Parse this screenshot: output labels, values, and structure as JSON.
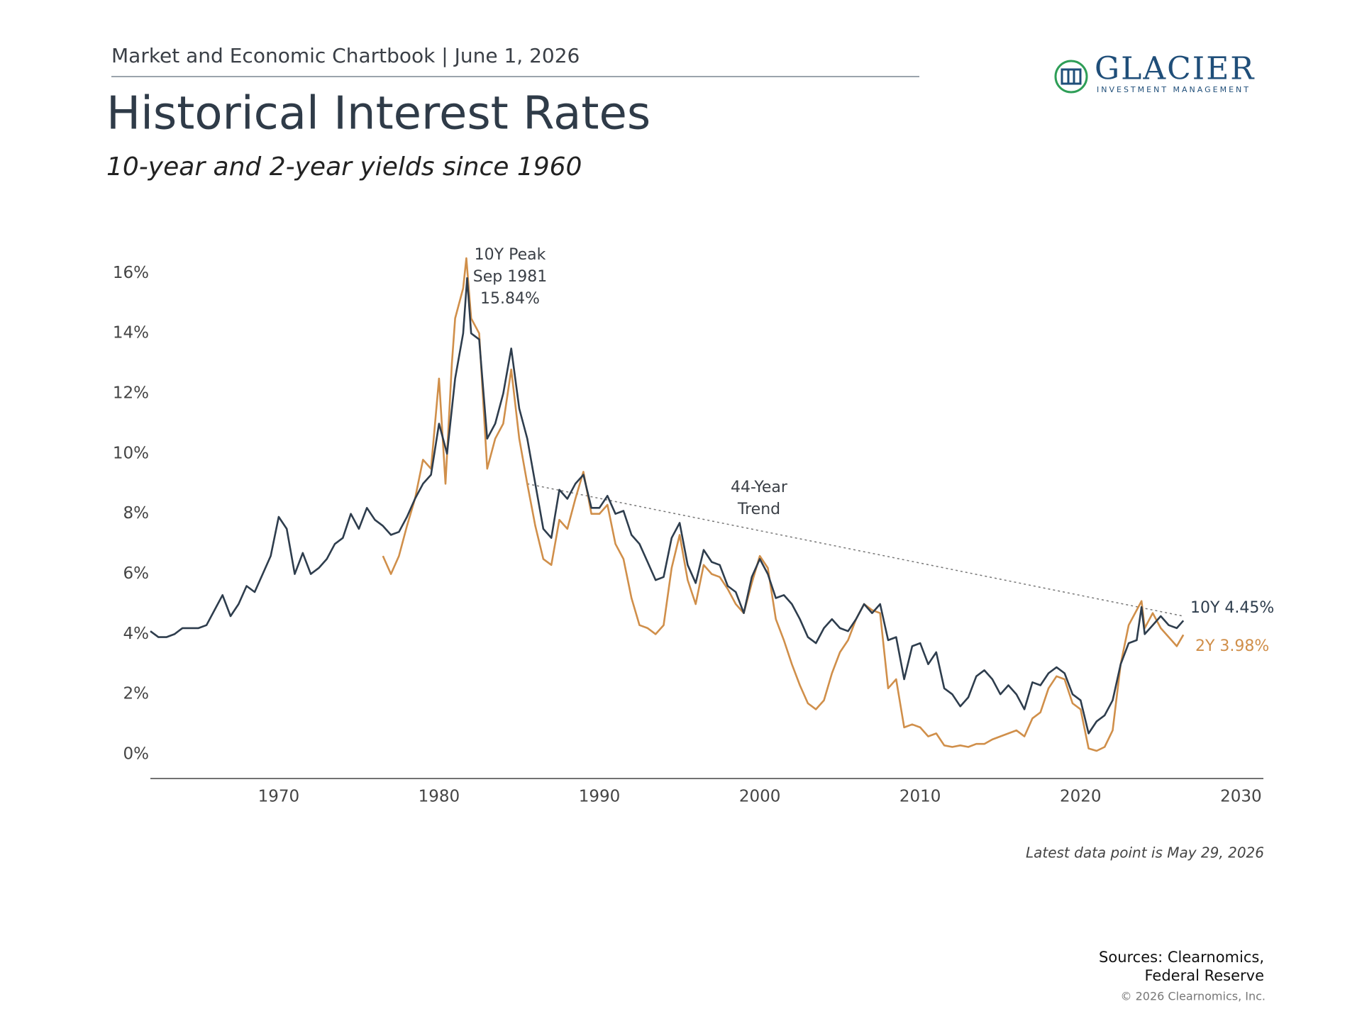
{
  "header": "Market and Economic Chartbook | June 1, 2026",
  "logo": {
    "name": "GLACIER",
    "tagline": "INVESTMENT MANAGEMENT"
  },
  "chart_data": {
    "type": "line",
    "title": "Historical Interest Rates",
    "subtitle": "10-year and 2-year yields since 1960",
    "xlim": [
      1962,
      2031.4
    ],
    "xticks": [
      1970,
      1980,
      1990,
      2000,
      2010,
      2020,
      2030
    ],
    "ylim": [
      -0.8,
      17
    ],
    "yticks": [
      {
        "value": 0,
        "label": "0%"
      },
      {
        "value": 2,
        "label": "2%"
      },
      {
        "value": 4,
        "label": "4%"
      },
      {
        "value": 6,
        "label": "6%"
      },
      {
        "value": 8,
        "label": "8%"
      },
      {
        "value": 10,
        "label": "10%"
      },
      {
        "value": 12,
        "label": "12%"
      },
      {
        "value": 14,
        "label": "14%"
      },
      {
        "value": 16,
        "label": "16%"
      }
    ],
    "series": [
      {
        "name": "10Y",
        "color": "#2e3d4d",
        "x": [
          1962,
          1962.5,
          1963,
          1963.5,
          1964,
          1964.5,
          1965,
          1965.5,
          1966,
          1966.5,
          1967,
          1967.5,
          1968,
          1968.5,
          1969,
          1969.5,
          1970,
          1970.5,
          1971,
          1971.5,
          1972,
          1972.5,
          1973,
          1973.5,
          1974,
          1974.5,
          1975,
          1975.5,
          1976,
          1976.5,
          1977,
          1977.5,
          1978,
          1978.5,
          1979,
          1979.5,
          1980,
          1980.5,
          1981,
          1981.5,
          1981.75,
          1982,
          1982.5,
          1983,
          1983.5,
          1984,
          1984.5,
          1985,
          1985.5,
          1986,
          1986.5,
          1987,
          1987.5,
          1988,
          1988.5,
          1989,
          1989.5,
          1990,
          1990.5,
          1991,
          1991.5,
          1992,
          1992.5,
          1993,
          1993.5,
          1994,
          1994.5,
          1995,
          1995.5,
          1996,
          1996.5,
          1997,
          1997.5,
          1998,
          1998.5,
          1999,
          1999.5,
          2000,
          2000.5,
          2001,
          2001.5,
          2002,
          2002.5,
          2003,
          2003.5,
          2004,
          2004.5,
          2005,
          2005.5,
          2006,
          2006.5,
          2007,
          2007.5,
          2008,
          2008.5,
          2009,
          2009.5,
          2010,
          2010.5,
          2011,
          2011.5,
          2012,
          2012.5,
          2013,
          2013.5,
          2014,
          2014.5,
          2015,
          2015.5,
          2016,
          2016.5,
          2017,
          2017.5,
          2018,
          2018.5,
          2019,
          2019.5,
          2020,
          2020.5,
          2021,
          2021.5,
          2022,
          2022.5,
          2023,
          2023.5,
          2023.8,
          2024,
          2024.5,
          2025,
          2025.5,
          2026,
          2026.41
        ],
        "values": [
          4.1,
          3.9,
          3.9,
          4.0,
          4.2,
          4.2,
          4.2,
          4.3,
          4.8,
          5.3,
          4.6,
          5.0,
          5.6,
          5.4,
          6.0,
          6.6,
          7.9,
          7.5,
          6.0,
          6.7,
          6.0,
          6.2,
          6.5,
          7.0,
          7.2,
          8.0,
          7.5,
          8.2,
          7.8,
          7.6,
          7.3,
          7.4,
          7.9,
          8.5,
          9.0,
          9.3,
          11.0,
          10.0,
          12.5,
          14.0,
          15.84,
          14.0,
          13.8,
          10.5,
          11.0,
          12.0,
          13.5,
          11.5,
          10.5,
          9.0,
          7.5,
          7.2,
          8.8,
          8.5,
          9.0,
          9.3,
          8.2,
          8.2,
          8.6,
          8.0,
          8.1,
          7.3,
          7.0,
          6.4,
          5.8,
          5.9,
          7.2,
          7.7,
          6.3,
          5.7,
          6.8,
          6.4,
          6.3,
          5.6,
          5.4,
          4.7,
          5.9,
          6.5,
          6.0,
          5.2,
          5.3,
          5.0,
          4.5,
          3.9,
          3.7,
          4.2,
          4.5,
          4.2,
          4.1,
          4.5,
          5.0,
          4.7,
          5.0,
          3.8,
          3.9,
          2.5,
          3.6,
          3.7,
          3.0,
          3.4,
          2.2,
          2.0,
          1.6,
          1.9,
          2.6,
          2.8,
          2.5,
          2.0,
          2.3,
          2.0,
          1.5,
          2.4,
          2.3,
          2.7,
          2.9,
          2.7,
          2.0,
          1.8,
          0.7,
          1.1,
          1.3,
          1.8,
          3.0,
          3.7,
          3.8,
          4.9,
          4.0,
          4.3,
          4.6,
          4.3,
          4.2,
          4.45
        ]
      },
      {
        "name": "2Y",
        "color": "#d08f4a",
        "x": [
          1976.5,
          1977,
          1977.5,
          1978,
          1978.5,
          1979,
          1979.5,
          1980,
          1980.4,
          1980.8,
          1981,
          1981.5,
          1981.7,
          1982,
          1982.5,
          1983,
          1983.5,
          1984,
          1984.5,
          1985,
          1985.5,
          1986,
          1986.5,
          1987,
          1987.5,
          1988,
          1988.5,
          1989,
          1989.5,
          1990,
          1990.5,
          1991,
          1991.5,
          1992,
          1992.5,
          1993,
          1993.5,
          1994,
          1994.5,
          1995,
          1995.5,
          1996,
          1996.5,
          1997,
          1997.5,
          1998,
          1998.5,
          1999,
          1999.5,
          2000,
          2000.5,
          2001,
          2001.5,
          2002,
          2002.5,
          2003,
          2003.5,
          2004,
          2004.5,
          2005,
          2005.5,
          2006,
          2006.5,
          2007,
          2007.5,
          2008,
          2008.5,
          2009,
          2009.5,
          2010,
          2010.5,
          2011,
          2011.5,
          2012,
          2012.5,
          2013,
          2013.5,
          2014,
          2014.5,
          2015,
          2015.5,
          2016,
          2016.5,
          2017,
          2017.5,
          2018,
          2018.5,
          2019,
          2019.5,
          2020,
          2020.5,
          2021,
          2021.5,
          2022,
          2022.5,
          2023,
          2023.5,
          2023.8,
          2024,
          2024.5,
          2025,
          2025.5,
          2026,
          2026.41
        ],
        "values": [
          6.6,
          6.0,
          6.6,
          7.6,
          8.5,
          9.8,
          9.5,
          12.5,
          9.0,
          13.0,
          14.5,
          15.5,
          16.5,
          14.5,
          14.0,
          9.5,
          10.5,
          11.0,
          12.8,
          10.5,
          9.0,
          7.6,
          6.5,
          6.3,
          7.8,
          7.5,
          8.5,
          9.4,
          8.0,
          8.0,
          8.3,
          7.0,
          6.5,
          5.2,
          4.3,
          4.2,
          4.0,
          4.3,
          6.2,
          7.3,
          5.8,
          5.0,
          6.3,
          6.0,
          5.9,
          5.5,
          5.0,
          4.7,
          5.7,
          6.6,
          6.2,
          4.5,
          3.8,
          3.0,
          2.3,
          1.7,
          1.5,
          1.8,
          2.7,
          3.4,
          3.8,
          4.5,
          5.0,
          4.8,
          4.7,
          2.2,
          2.5,
          0.9,
          1.0,
          0.9,
          0.6,
          0.7,
          0.3,
          0.25,
          0.3,
          0.25,
          0.35,
          0.35,
          0.5,
          0.6,
          0.7,
          0.8,
          0.6,
          1.2,
          1.4,
          2.2,
          2.6,
          2.5,
          1.7,
          1.5,
          0.2,
          0.12,
          0.25,
          0.8,
          3.0,
          4.3,
          4.8,
          5.1,
          4.2,
          4.7,
          4.2,
          3.9,
          3.6,
          3.98
        ]
      }
    ],
    "trend": {
      "x": [
        1985.5,
        2026.4
      ],
      "values": [
        9.0,
        4.6
      ],
      "color": "#777777"
    },
    "peak_annotation": [
      "10Y Peak",
      "Sep 1981",
      "15.84%"
    ],
    "trend_annotation": [
      "44-Year",
      "Trend"
    ],
    "end_labels": [
      "10Y 4.45%",
      "2Y 3.98%"
    ],
    "note": "Latest data point is May 29, 2026"
  },
  "sources": [
    "Sources: Clearnomics,",
    "Federal Reserve"
  ],
  "copyright": "© 2026 Clearnomics, Inc."
}
